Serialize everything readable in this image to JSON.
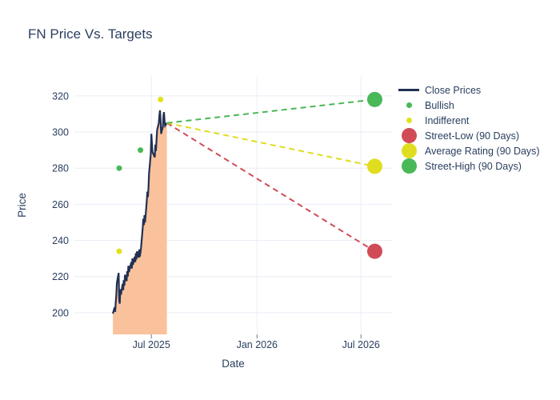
{
  "chart_data": {
    "type": "line",
    "title": "FN Price Vs. Targets",
    "xlabel": "Date",
    "ylabel": "Price",
    "grid": true,
    "legend_position": "top-right",
    "y_ticks": [
      200,
      220,
      240,
      260,
      280,
      300,
      320
    ],
    "x_ticks": [
      {
        "label": "Jul 2025",
        "date": "2025-07-01"
      },
      {
        "label": "Jan 2026",
        "date": "2026-01-01"
      },
      {
        "label": "Jul 2026",
        "date": "2026-07-01"
      }
    ],
    "x_range": [
      "2025-02-17",
      "2026-08-24"
    ],
    "y_range": [
      188,
      331
    ],
    "colors": {
      "text": "#2a3f5f",
      "gridline": "#e9eef6",
      "tick": "#6b7b96",
      "close_line": "#223053",
      "close_fill": "#f9c29c",
      "bullish": "#49b857",
      "indifferent": "#e2e11c",
      "street_low": "#d14b57",
      "average_rating": "#e0dd20",
      "street_high": "#49b857"
    },
    "series": [
      {
        "name": "Close Prices",
        "type": "line",
        "color": "#223053",
        "fill_color": "#f9c29c",
        "x": [
          "2025-04-25",
          "2025-04-28",
          "2025-04-29",
          "2025-04-30",
          "2025-05-01",
          "2025-05-02",
          "2025-05-05",
          "2025-05-06",
          "2025-05-07",
          "2025-05-08",
          "2025-05-09",
          "2025-05-12",
          "2025-05-13",
          "2025-05-14",
          "2025-05-15",
          "2025-05-16",
          "2025-05-19",
          "2025-05-20",
          "2025-05-21",
          "2025-05-22",
          "2025-05-23",
          "2025-05-27",
          "2025-05-28",
          "2025-05-29",
          "2025-05-30",
          "2025-06-02",
          "2025-06-03",
          "2025-06-04",
          "2025-06-05",
          "2025-06-06",
          "2025-06-09",
          "2025-06-10",
          "2025-06-11",
          "2025-06-12",
          "2025-06-13",
          "2025-06-16",
          "2025-06-17",
          "2025-06-18",
          "2025-06-19",
          "2025-06-20",
          "2025-06-23",
          "2025-06-24",
          "2025-06-25",
          "2025-06-26",
          "2025-06-27",
          "2025-06-30",
          "2025-07-01",
          "2025-07-02",
          "2025-07-03",
          "2025-07-07",
          "2025-07-08",
          "2025-07-09",
          "2025-07-10",
          "2025-07-11",
          "2025-07-14",
          "2025-07-15",
          "2025-07-16",
          "2025-07-17",
          "2025-07-18",
          "2025-07-21",
          "2025-07-22",
          "2025-07-23",
          "2025-07-24",
          "2025-07-25",
          "2025-07-28"
        ],
        "y": [
          199.5,
          203,
          200.5,
          206,
          210,
          216.5,
          222,
          207,
          205,
          213,
          210,
          216,
          212.5,
          218,
          215,
          221,
          217.5,
          223,
          220,
          226,
          222.5,
          228,
          224.5,
          230,
          226.5,
          231,
          228,
          233,
          229.5,
          234,
          230.5,
          235,
          231,
          233.5,
          236,
          247,
          252,
          248.5,
          254,
          250,
          262,
          267,
          264,
          269,
          277,
          288,
          299,
          294,
          289,
          286,
          293,
          289.5,
          296,
          301,
          305,
          309,
          312,
          307,
          299,
          303,
          309,
          311,
          306,
          303.5,
          305
        ]
      },
      {
        "name": "Bullish",
        "type": "scatter",
        "color": "#49b857",
        "x": [
          "2025-05-06",
          "2025-06-12"
        ],
        "y": [
          280,
          290
        ]
      },
      {
        "name": "Indifferent",
        "type": "scatter",
        "color": "#e2e11c",
        "x": [
          "2025-05-06",
          "2025-07-17"
        ],
        "y": [
          234,
          318
        ]
      },
      {
        "name": "Street-Low (90 Days)",
        "type": "target",
        "color": "#d14b57",
        "date": "2026-07-25",
        "value": 234,
        "from": {
          "date": "2025-07-28",
          "value": 305
        }
      },
      {
        "name": "Average Rating (90 Days)",
        "type": "target",
        "color": "#e0dd20",
        "date": "2026-07-25",
        "value": 281,
        "from": {
          "date": "2025-07-28",
          "value": 305
        }
      },
      {
        "name": "Street-High (90 Days)",
        "type": "target",
        "color": "#49b857",
        "date": "2026-07-25",
        "value": 318,
        "from": {
          "date": "2025-07-28",
          "value": 305
        }
      }
    ]
  }
}
